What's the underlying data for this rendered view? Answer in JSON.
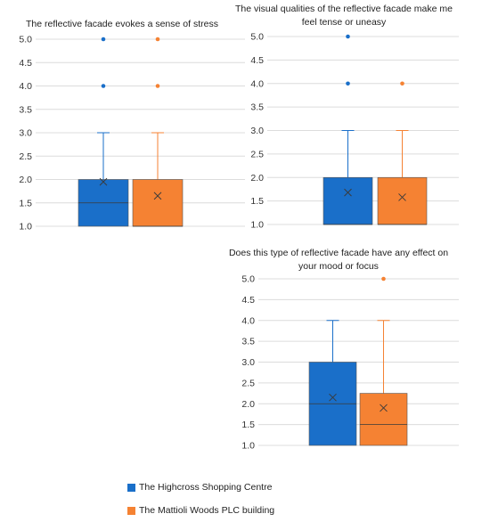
{
  "legend": {
    "items": [
      {
        "label": "The Highcross Shopping Centre",
        "color": "#1a6fc9"
      },
      {
        "label": "The Mattioli Woods PLC building",
        "color": "#f58233"
      }
    ]
  },
  "chart_data": [
    {
      "type": "box",
      "title_lines": [
        "The reflective facade evokes a sense of stress"
      ],
      "ylim": [
        1.0,
        5.0
      ],
      "yticks": [
        "1.0",
        "1.5",
        "2.0",
        "2.5",
        "3.0",
        "3.5",
        "4.0",
        "4.5",
        "5.0"
      ],
      "grid": true,
      "series": [
        {
          "name": "The Highcross Shopping Centre",
          "color": "#1a6fc9",
          "min": 1.0,
          "q1": 1.0,
          "median": 1.5,
          "q3": 2.0,
          "max": 3.0,
          "mean": 1.95,
          "outliers": [
            4.0,
            5.0
          ]
        },
        {
          "name": "The Mattioli Woods PLC building",
          "color": "#f58233",
          "min": 1.0,
          "q1": 1.0,
          "median": 1.0,
          "q3": 2.0,
          "max": 3.0,
          "mean": 1.65,
          "outliers": [
            4.0,
            5.0
          ]
        }
      ]
    },
    {
      "type": "box",
      "title_lines": [
        "The visual qualities of the reflective facade make me",
        "feel tense or uneasy"
      ],
      "ylim": [
        1.0,
        5.0
      ],
      "yticks": [
        "1.0",
        "1.5",
        "2.0",
        "2.5",
        "3.0",
        "3.5",
        "4.0",
        "4.5",
        "5.0"
      ],
      "grid": true,
      "series": [
        {
          "name": "The Highcross Shopping Centre",
          "color": "#1a6fc9",
          "min": 1.0,
          "q1": 1.0,
          "median": 1.0,
          "q3": 2.0,
          "max": 3.0,
          "mean": 1.68,
          "outliers": [
            4.0,
            5.0
          ]
        },
        {
          "name": "The Mattioli Woods PLC building",
          "color": "#f58233",
          "min": 1.0,
          "q1": 1.0,
          "median": 1.0,
          "q3": 2.0,
          "max": 3.0,
          "mean": 1.58,
          "outliers": [
            4.0
          ]
        }
      ]
    },
    {
      "type": "box",
      "title_lines": [
        "Does this type of reflective facade have any effect on",
        "your mood or focus"
      ],
      "ylim": [
        1.0,
        5.0
      ],
      "yticks": [
        "1.0",
        "1.5",
        "2.0",
        "2.5",
        "3.0",
        "3.5",
        "4.0",
        "4.5",
        "5.0"
      ],
      "grid": true,
      "series": [
        {
          "name": "The Highcross Shopping Centre",
          "color": "#1a6fc9",
          "min": 1.0,
          "q1": 1.0,
          "median": 2.0,
          "q3": 3.0,
          "max": 4.0,
          "mean": 2.15,
          "outliers": []
        },
        {
          "name": "The Mattioli Woods PLC building",
          "color": "#f58233",
          "min": 1.0,
          "q1": 1.0,
          "median": 1.5,
          "q3": 2.25,
          "max": 4.0,
          "mean": 1.9,
          "outliers": [
            5.0
          ]
        }
      ]
    }
  ]
}
